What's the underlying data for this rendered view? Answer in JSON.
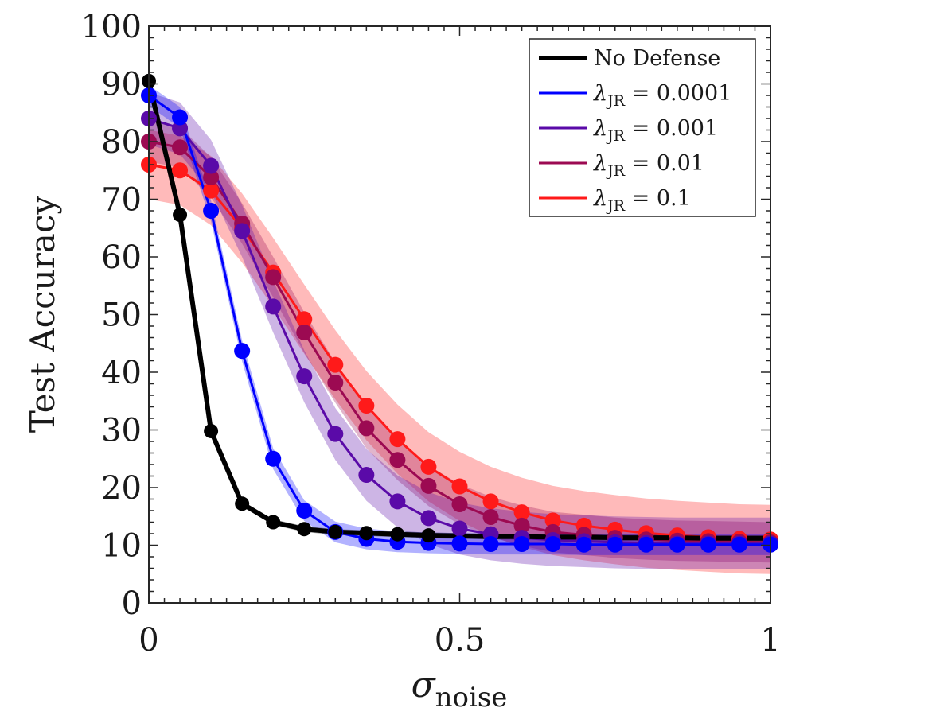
{
  "chart_data": {
    "type": "line",
    "title": "",
    "xlabel": {
      "symbol": "σ",
      "subscript": "noise"
    },
    "ylabel": "Test Accuracy",
    "xlim": [
      0,
      1
    ],
    "ylim": [
      0,
      100
    ],
    "xticks": [
      0,
      0.5,
      1
    ],
    "xtick_labels": [
      "0",
      "0.5",
      "1"
    ],
    "yticks": [
      0,
      10,
      20,
      30,
      40,
      50,
      60,
      70,
      80,
      90,
      100
    ],
    "ytick_labels": [
      "0",
      "10",
      "20",
      "30",
      "40",
      "50",
      "60",
      "70",
      "80",
      "90",
      "100"
    ],
    "legend_position": "top-right",
    "x": [
      0,
      0.05,
      0.1,
      0.15,
      0.2,
      0.25,
      0.3,
      0.35,
      0.4,
      0.45,
      0.5,
      0.55,
      0.6,
      0.65,
      0.7,
      0.75,
      0.8,
      0.85,
      0.9,
      0.95,
      1.0
    ],
    "series": [
      {
        "name": "No Defense",
        "legend": {
          "text": "No Defense"
        },
        "color": "#000000",
        "markers": [
          0,
          0.05,
          0.1,
          0.15,
          0.2,
          0.25,
          0.3,
          0.35,
          0.4,
          0.45
        ],
        "values": [
          90.5,
          67.3,
          29.8,
          17.2,
          14.0,
          12.8,
          12.3,
          12.1,
          11.9,
          11.7,
          11.6,
          11.5,
          11.5,
          11.4,
          11.4,
          11.3,
          11.3,
          11.3,
          11.2,
          11.2,
          11.2
        ],
        "band": 0.5
      },
      {
        "name": "λJR = 0.0001",
        "legend": {
          "symbol": "λ",
          "subscript": "JR",
          "value": " = 0.0001"
        },
        "color": "#0000ff",
        "markers": "all",
        "values": [
          88.0,
          84.2,
          68.0,
          43.7,
          25.0,
          16.0,
          12.3,
          11.1,
          10.6,
          10.4,
          10.3,
          10.2,
          10.2,
          10.2,
          10.1,
          10.1,
          10.1,
          10.1,
          10.1,
          10.1,
          10.1
        ],
        "band": 1.8
      },
      {
        "name": "λJR = 0.001",
        "legend": {
          "symbol": "λ",
          "subscript": "JR",
          "value": " = 0.001"
        },
        "color": "#5a0aa8",
        "markers": "all",
        "values": [
          84.0,
          82.3,
          75.8,
          64.5,
          51.4,
          39.3,
          29.3,
          22.2,
          17.6,
          14.7,
          12.9,
          11.9,
          11.3,
          10.9,
          10.7,
          10.5,
          10.4,
          10.3,
          10.3,
          10.3,
          10.3
        ],
        "band": 4.5
      },
      {
        "name": "λJR = 0.01",
        "legend": {
          "symbol": "λ",
          "subscript": "JR",
          "value": " = 0.01"
        },
        "color": "#9c0a52",
        "markers": "all",
        "values": [
          80.0,
          79.0,
          73.8,
          65.8,
          56.5,
          46.9,
          38.2,
          30.3,
          24.8,
          20.3,
          17.1,
          14.9,
          13.4,
          12.3,
          11.8,
          11.3,
          11.0,
          10.8,
          10.7,
          10.6,
          10.5
        ],
        "band": 3.5
      },
      {
        "name": "λJR = 0.1",
        "legend": {
          "symbol": "λ",
          "subscript": "JR",
          "value": " = 0.1"
        },
        "color": "#ff1a1a",
        "markers": "all",
        "values": [
          76.0,
          75.0,
          71.5,
          65.0,
          57.3,
          49.2,
          41.3,
          34.2,
          28.4,
          23.6,
          20.2,
          17.6,
          15.7,
          14.3,
          13.4,
          12.7,
          12.1,
          11.7,
          11.4,
          11.1,
          11.0
        ],
        "band": 6.0
      }
    ]
  }
}
